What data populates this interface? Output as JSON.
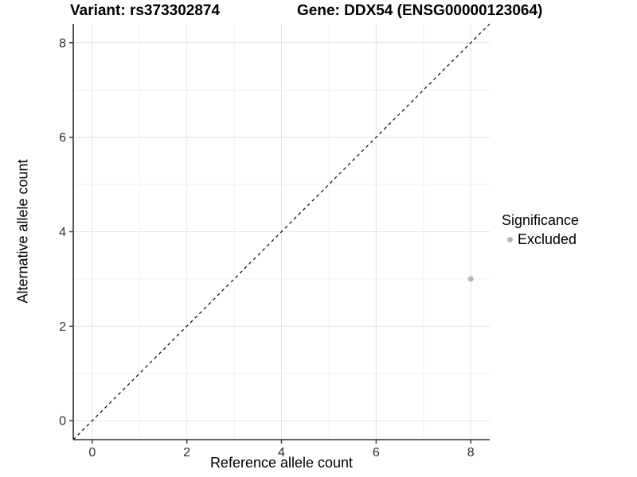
{
  "title": {
    "left": "Variant: rs373302874",
    "right": "Gene: DDX54 (ENSG00000123064)"
  },
  "chart_data": {
    "type": "scatter",
    "xlabel": "Reference allele count",
    "ylabel": "Alternative allele count",
    "xlim": [
      -0.4,
      8.4
    ],
    "ylim": [
      -0.4,
      8.4
    ],
    "x_ticks": [
      0,
      2,
      4,
      6,
      8
    ],
    "y_ticks": [
      0,
      2,
      4,
      6,
      8
    ],
    "x_minor_ticks": [
      1,
      3,
      5,
      7
    ],
    "y_minor_ticks": [
      1,
      3,
      5,
      7
    ],
    "grid": true,
    "identity_line": {
      "style": "dashed",
      "from": [
        -0.4,
        -0.4
      ],
      "to": [
        8.4,
        8.4
      ],
      "color": "#000000"
    },
    "series": [
      {
        "name": "Excluded",
        "color": "#b7b7b7",
        "points": [
          {
            "x": 8,
            "y": 3
          }
        ]
      }
    ],
    "legend": {
      "title": "Significance",
      "position": "right",
      "entries": [
        {
          "label": "Excluded",
          "color": "#b7b7b7"
        }
      ]
    }
  },
  "colors": {
    "background": "#ffffff",
    "grid_major": "#e4e4e4",
    "grid_minor": "#f1f1f1",
    "axis_line": "#2e2e2e",
    "tick_mark": "#333333",
    "tick_label": "#303030",
    "point": "#b7b7b7"
  }
}
